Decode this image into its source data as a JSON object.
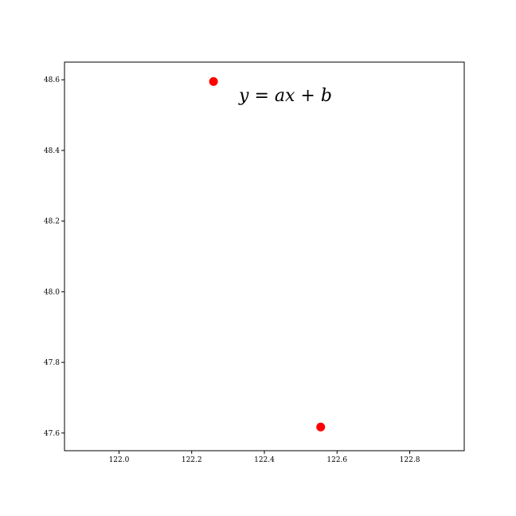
{
  "chart_data": {
    "type": "scatter",
    "title": "",
    "xlabel": "",
    "ylabel": "",
    "xlim": [
      121.85,
      122.95
    ],
    "ylim": [
      47.55,
      48.65
    ],
    "x_ticks": [
      122.0,
      122.2,
      122.4,
      122.6,
      122.8
    ],
    "x_tick_labels": [
      "122.0",
      "122.2",
      "122.4",
      "122.6",
      "122.8"
    ],
    "y_ticks": [
      47.6,
      47.8,
      48.0,
      48.2,
      48.4,
      48.6
    ],
    "y_tick_labels": [
      "47.6",
      "47.8",
      "48.0",
      "48.2",
      "48.4",
      "48.6"
    ],
    "series": [
      {
        "color": "#ff0000",
        "points": [
          {
            "x": 122.26,
            "y": 48.595
          },
          {
            "x": 122.555,
            "y": 47.617
          }
        ]
      }
    ],
    "annotation": {
      "text": "y = ax + b",
      "x": 122.33,
      "y": 48.54
    },
    "grid": false,
    "legend": "none"
  }
}
